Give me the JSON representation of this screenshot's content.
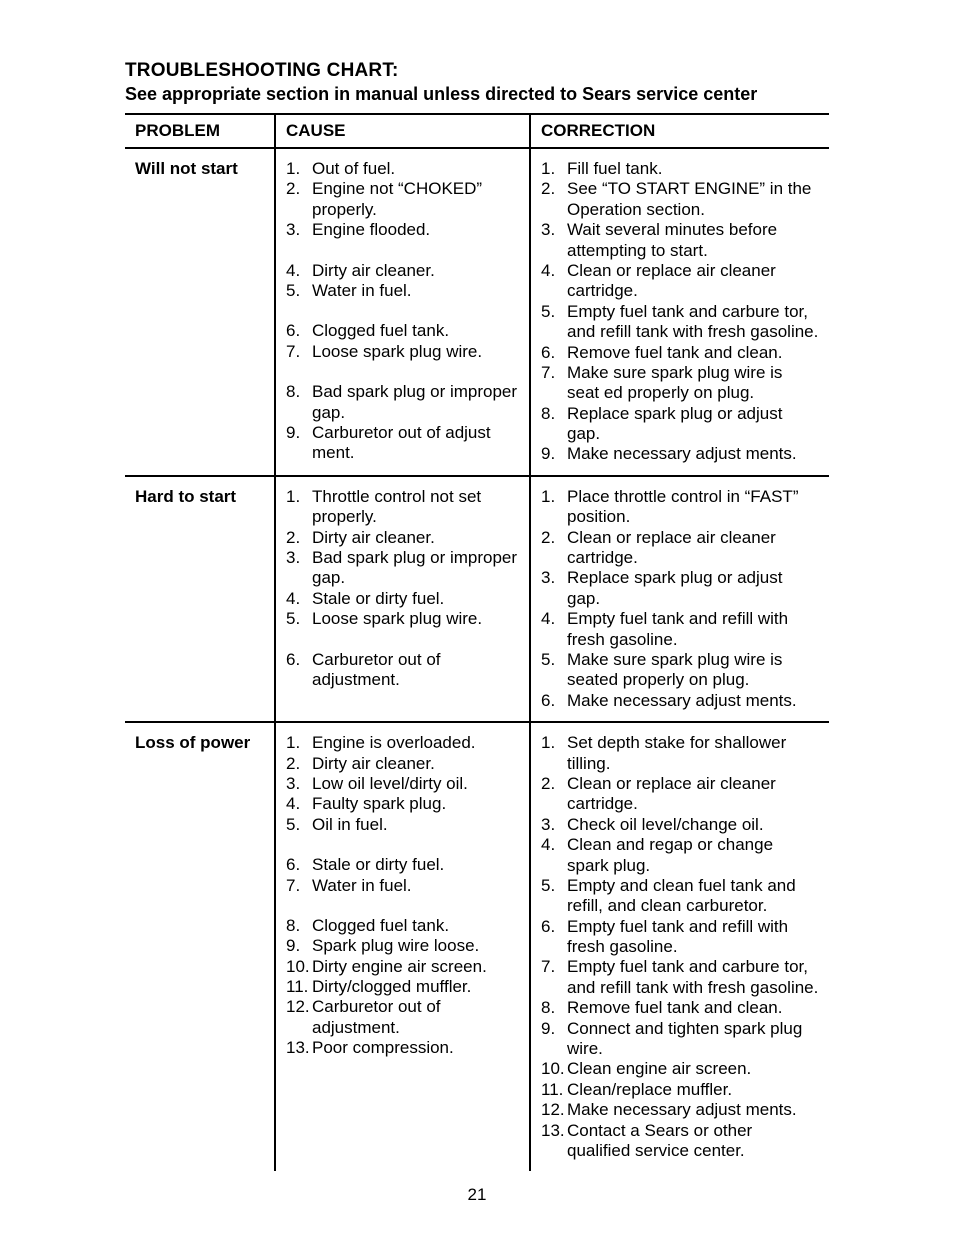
{
  "title": "TROUBLESHOOTING CHART:",
  "subtitle": "See appropriate section in manual unless directed to Sears service center",
  "headers": {
    "c1": "PROBLEM",
    "c2": "CAUSE",
    "c3": "CORRECTION"
  },
  "page_number": "21",
  "sections": [
    {
      "problem": "Will not start",
      "causes": [
        "Out of fuel.",
        "Engine not “CHOKED” properly.",
        "Engine flooded.",
        "Dirty air cleaner.",
        "Water in fuel.",
        "Clogged fuel tank.",
        "Loose spark plug wire.",
        "Bad spark plug or improper gap.",
        "Carburetor out of adjust ment."
      ],
      "corrections": [
        "Fill fuel tank.",
        "See “TO START ENGINE” in the Operation section.",
        "Wait several minutes before attempting to start.",
        "Clean or replace air cleaner cartridge.",
        "Empty fuel tank and carbure tor, and refill tank with fresh gasoline.",
        "Remove fuel tank and clean.",
        "Make sure spark plug wire is seat ed properly on plug.",
        "Replace spark plug or adjust gap.",
        "Make necessary adjust ments."
      ]
    },
    {
      "problem": "Hard to start",
      "causes": [
        "Throttle control not set properly.",
        "Dirty air  cleaner.",
        "Bad spark plug or improper gap.",
        "Stale or dirty fuel.",
        "Loose spark plug wire.",
        "Carburetor out of adjustment."
      ],
      "corrections": [
        "Place throttle control in “FAST”  position.",
        "Clean or replace air cleaner cartridge.",
        "Replace spark plug or adjust gap.",
        "Empty fuel tank and refill with fresh gasoline.",
        "Make sure spark plug wire is seated properly on plug.",
        "Make necessary adjust ments."
      ]
    },
    {
      "problem": "Loss of power",
      "causes": [
        "Engine is overloaded.",
        "Dirty air cleaner.",
        "Low oil level/dirty oil.",
        "Faulty spark plug.",
        "Oil in fuel.",
        "Stale or dirty fuel.",
        "Water in fuel.",
        "Clogged fuel tank.",
        "Spark plug  wire loose.",
        "Dirty engine air screen.",
        "Dirty/clogged muffler.",
        "Carburetor out of adjustment.",
        "Poor compression."
      ],
      "corrections": [
        "Set depth stake for shallower tilling.",
        "Clean or replace air cleaner cartridge.",
        "Check oil level/change oil.",
        "Clean and regap or change spark plug.",
        "Empty and clean fuel tank and refill, and clean carburetor.",
        "Empty fuel tank and refill with fresh gasoline.",
        "Empty fuel tank and carbure tor, and refill tank with fresh gasoline.",
        "Remove fuel tank and clean.",
        "Connect and tighten spark plug wire.",
        "Clean engine air screen.",
        "Clean/replace muffler.",
        "Make necessary adjust ments.",
        "Contact a Sears or other qualified service center."
      ]
    }
  ]
}
